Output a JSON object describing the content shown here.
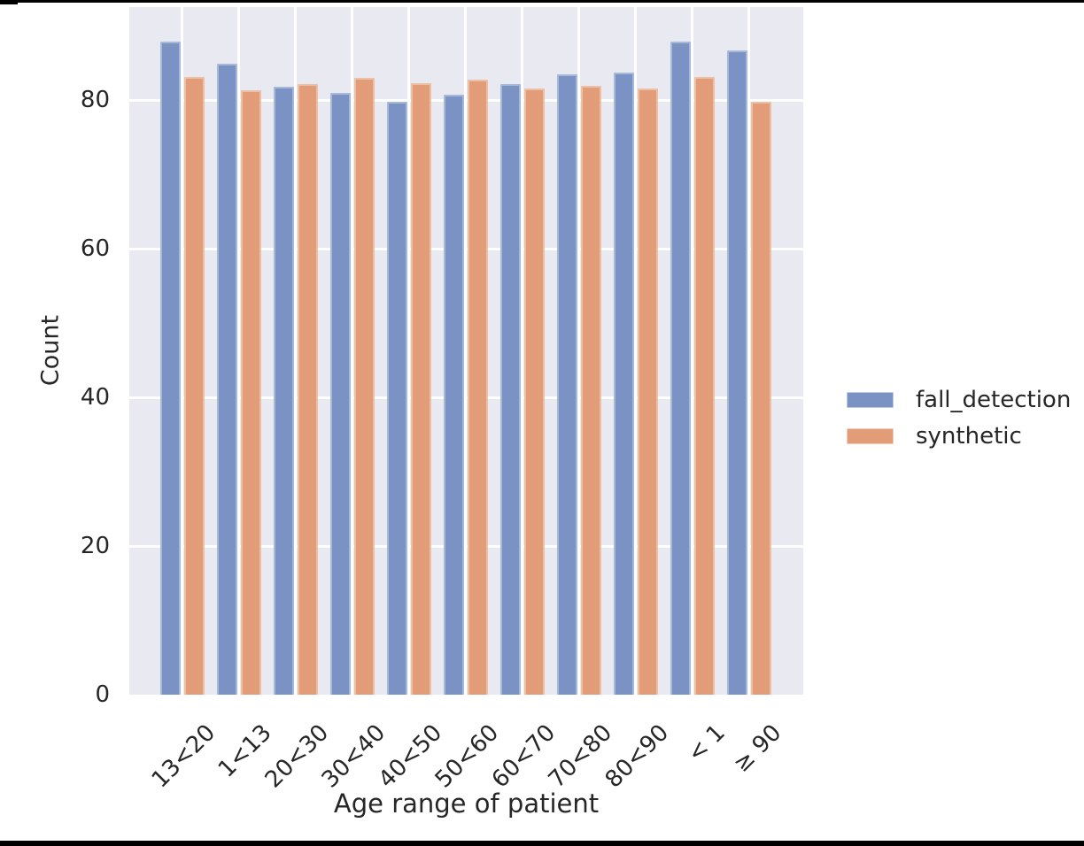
{
  "chart_data": {
    "type": "bar",
    "title": "",
    "xlabel": "Age range of patient",
    "ylabel": "Count",
    "categories": [
      "13<20",
      "1<13",
      "20<30",
      "30<40",
      "40<50",
      "50<60",
      "60<70",
      "70<80",
      "80<90",
      "< 1",
      "≥ 90"
    ],
    "series": [
      {
        "name": "fall_detection",
        "color": "#7A93C4",
        "values": [
          87.8,
          84.9,
          81.8,
          81.0,
          79.8,
          80.7,
          82.1,
          83.5,
          83.7,
          87.8,
          86.7
        ]
      },
      {
        "name": "synthetic",
        "color": "#E29D78",
        "values": [
          83.1,
          81.3,
          82.2,
          83.0,
          82.3,
          82.7,
          81.5,
          81.9,
          81.6,
          83.1,
          79.8
        ]
      }
    ],
    "ylim": [
      0,
      92.5
    ],
    "yticks": [
      0,
      20,
      40,
      60,
      80
    ],
    "grid": true,
    "grid_color": "#ffffff",
    "plot_background": "#E9E9F1",
    "legend_position": "center right"
  }
}
